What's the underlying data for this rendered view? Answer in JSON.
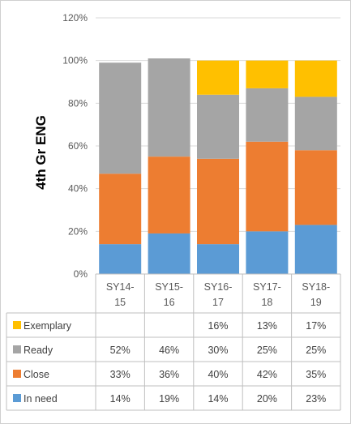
{
  "chart_data": {
    "type": "bar",
    "stacked": true,
    "ylabel": "4th Gr ENG",
    "y_ticks": [
      "0%",
      "20%",
      "40%",
      "60%",
      "80%",
      "100%",
      "120%"
    ],
    "ylim": [
      0,
      120
    ],
    "grid": true,
    "legend": "data-table",
    "categories": [
      [
        "SY14-",
        "15"
      ],
      [
        "SY15-",
        "16"
      ],
      [
        "SY16-",
        "17"
      ],
      [
        "SY17-",
        "18"
      ],
      [
        "SY18-",
        "19"
      ]
    ],
    "series": [
      {
        "name": "In need",
        "color": "#5b9bd5",
        "values": [
          14,
          19,
          14,
          20,
          23
        ],
        "labels": [
          "14%",
          "19%",
          "14%",
          "20%",
          "23%"
        ]
      },
      {
        "name": "Close",
        "color": "#ed7d31",
        "values": [
          33,
          36,
          40,
          42,
          35
        ],
        "labels": [
          "33%",
          "36%",
          "40%",
          "42%",
          "35%"
        ]
      },
      {
        "name": "Ready",
        "color": "#a5a5a5",
        "values": [
          52,
          46,
          30,
          25,
          25
        ],
        "labels": [
          "52%",
          "46%",
          "30%",
          "25%",
          "25%"
        ]
      },
      {
        "name": "Exemplary",
        "color": "#ffc000",
        "values": [
          0,
          0,
          16,
          13,
          17
        ],
        "labels": [
          "",
          "",
          "16%",
          "13%",
          "17%"
        ]
      }
    ]
  }
}
